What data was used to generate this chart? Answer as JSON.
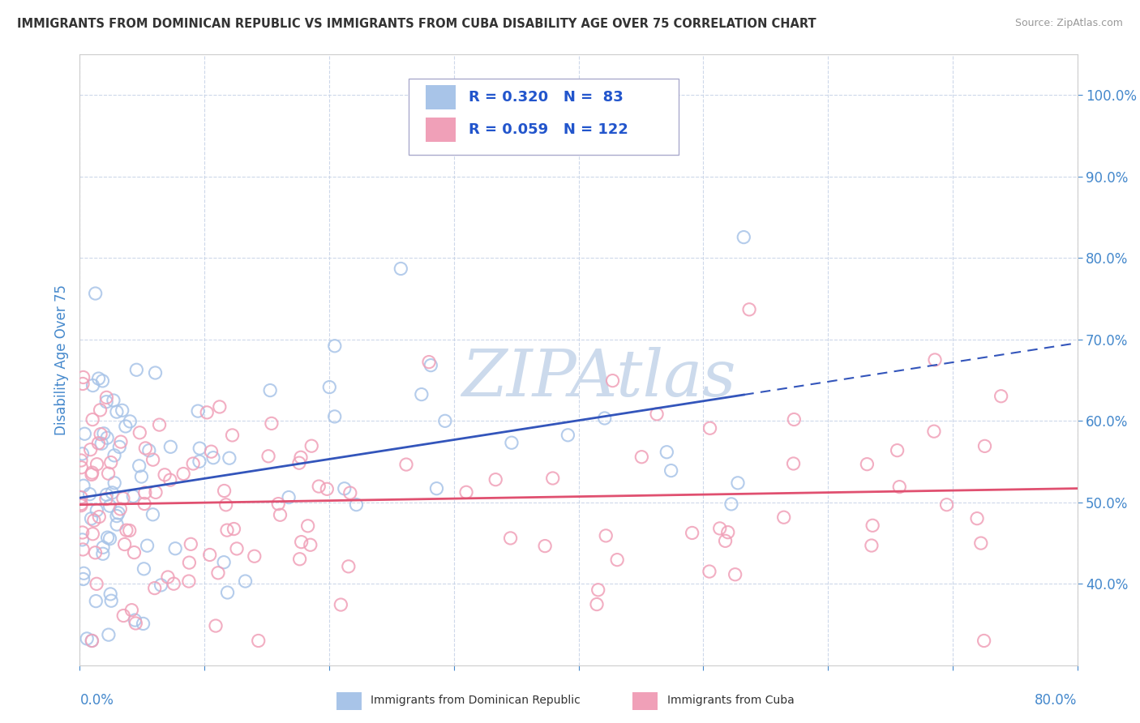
{
  "title": "IMMIGRANTS FROM DOMINICAN REPUBLIC VS IMMIGRANTS FROM CUBA DISABILITY AGE OVER 75 CORRELATION CHART",
  "source": "Source: ZipAtlas.com",
  "ylabel": "Disability Age Over 75",
  "watermark": "ZIPAtlas",
  "series1_label": "Immigrants from Dominican Republic",
  "series1_dot_color": "#a8c4e8",
  "series1_R": 0.32,
  "series1_N": 83,
  "series1_line_color": "#3355bb",
  "series2_label": "Immigrants from Cuba",
  "series2_dot_color": "#f0a0b8",
  "series2_R": 0.059,
  "series2_N": 122,
  "series2_line_color": "#e05070",
  "xlim": [
    0.0,
    0.8
  ],
  "ylim": [
    0.3,
    1.05
  ],
  "yticks": [
    0.4,
    0.5,
    0.6,
    0.7,
    0.8,
    0.9,
    1.0
  ],
  "background_color": "#ffffff",
  "grid_color": "#c8d4e8",
  "title_color": "#333333",
  "source_color": "#999999",
  "legend_text_color": "#2255cc",
  "axis_label_color": "#4488cc",
  "watermark_color": "#ccdaec"
}
